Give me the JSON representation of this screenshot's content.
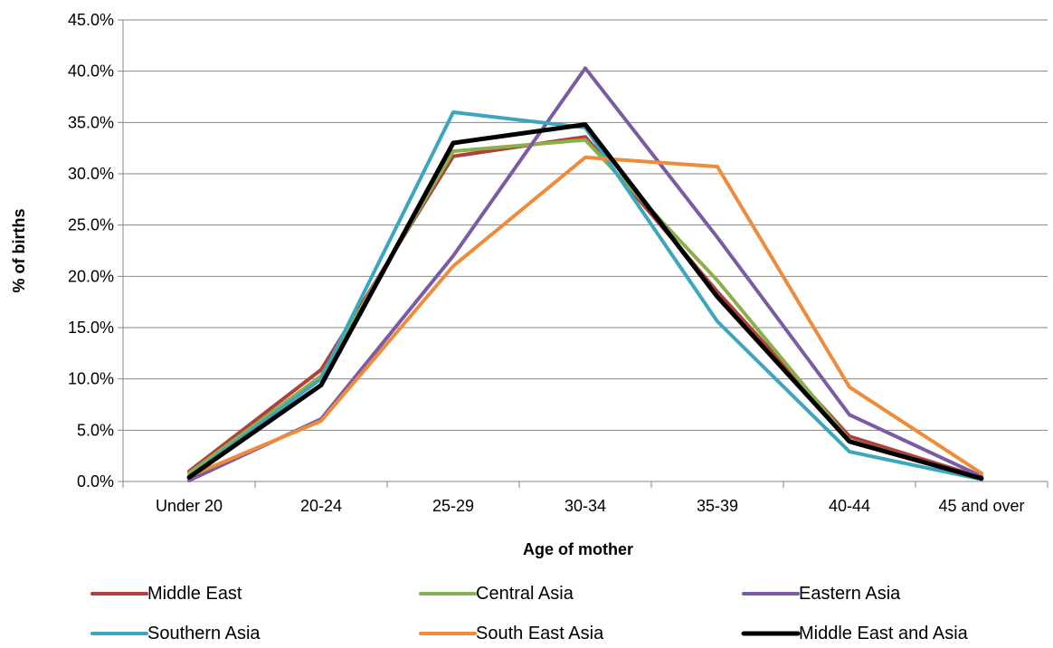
{
  "chart_data": {
    "type": "line",
    "title": "",
    "xlabel": "Age of mother",
    "ylabel": "% of births",
    "categories": [
      "Under 20",
      "20-24",
      "25-29",
      "30-34",
      "35-39",
      "40-44",
      "45 and over"
    ],
    "ylim": [
      0,
      45
    ],
    "yticks": [
      0,
      5,
      10,
      15,
      20,
      25,
      30,
      35,
      40,
      45
    ],
    "ytick_labels": [
      "0.0%",
      "5.0%",
      "10.0%",
      "15.0%",
      "20.0%",
      "25.0%",
      "30.0%",
      "35.0%",
      "40.0%",
      "45.0%"
    ],
    "grid": "horizontal",
    "legend_position": "bottom",
    "series": [
      {
        "name": "Middle East",
        "color": "#b0403c",
        "values": [
          1.0,
          10.9,
          31.7,
          33.6,
          18.5,
          4.4,
          0.4
        ]
      },
      {
        "name": "Central Asia",
        "color": "#8bb04b",
        "values": [
          0.8,
          10.3,
          32.2,
          33.3,
          19.6,
          4.0,
          0.3
        ]
      },
      {
        "name": "Eastern Asia",
        "color": "#7b5ca4",
        "values": [
          0.1,
          6.1,
          22.0,
          40.3,
          23.8,
          6.5,
          0.5
        ]
      },
      {
        "name": "Southern Asia",
        "color": "#3ca6bd",
        "values": [
          0.5,
          10.0,
          36.0,
          34.5,
          15.6,
          2.9,
          0.2
        ]
      },
      {
        "name": "South East Asia",
        "color": "#ee8c3c",
        "values": [
          0.5,
          5.9,
          21.0,
          31.6,
          30.7,
          9.2,
          0.8
        ]
      },
      {
        "name": "Middle East and Asia",
        "color": "#000000",
        "values": [
          0.4,
          9.4,
          33.0,
          34.8,
          18.0,
          3.9,
          0.3
        ]
      }
    ]
  }
}
